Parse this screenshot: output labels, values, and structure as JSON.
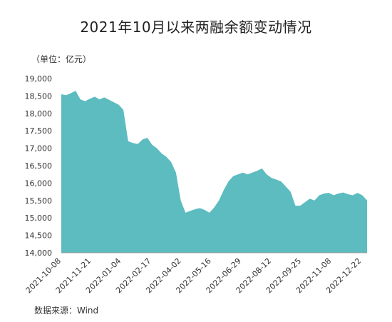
{
  "title": "2021年10月以来两融余额变动情况",
  "unit_label": "（单位：亿元）",
  "source": "数据来源：Wind",
  "watermark": "Wind",
  "chart_data": {
    "type": "area",
    "color": "#5cbcbf",
    "ylim": [
      14000,
      19000
    ],
    "yticks": [
      14000,
      14500,
      15000,
      15500,
      16000,
      16500,
      17000,
      17500,
      18000,
      18500,
      19000
    ],
    "ytick_labels": [
      "14,000",
      "14,500",
      "15,000",
      "15,500",
      "16,000",
      "16,500",
      "17,000",
      "17,500",
      "18,000",
      "18,500",
      "19,000"
    ],
    "xtick_labels": [
      "2021-10-08",
      "2021-11-21",
      "2022-01-04",
      "2022-02-17",
      "2022-04-02",
      "2022-05-16",
      "2022-06-29",
      "2022-08-12",
      "2022-09-25",
      "2022-11-08",
      "2022-12-22"
    ],
    "x": [
      "2021-10-08",
      "2021-10-15",
      "2021-10-22",
      "2021-10-29",
      "2021-11-05",
      "2021-11-12",
      "2021-11-19",
      "2021-11-26",
      "2021-12-03",
      "2021-12-10",
      "2021-12-17",
      "2021-12-24",
      "2021-12-31",
      "2022-01-07",
      "2022-01-14",
      "2022-01-21",
      "2022-01-28",
      "2022-02-04",
      "2022-02-11",
      "2022-02-18",
      "2022-02-25",
      "2022-03-04",
      "2022-03-11",
      "2022-03-18",
      "2022-03-25",
      "2022-04-01",
      "2022-04-08",
      "2022-04-15",
      "2022-04-22",
      "2022-04-29",
      "2022-05-06",
      "2022-05-13",
      "2022-05-20",
      "2022-05-27",
      "2022-06-03",
      "2022-06-10",
      "2022-06-17",
      "2022-06-24",
      "2022-07-01",
      "2022-07-08",
      "2022-07-15",
      "2022-07-22",
      "2022-07-29",
      "2022-08-05",
      "2022-08-12",
      "2022-08-19",
      "2022-08-26",
      "2022-09-02",
      "2022-09-09",
      "2022-09-16",
      "2022-09-23",
      "2022-09-30",
      "2022-10-07",
      "2022-10-14",
      "2022-10-21",
      "2022-10-28",
      "2022-11-04",
      "2022-11-11",
      "2022-11-18",
      "2022-11-25",
      "2022-12-02",
      "2022-12-09",
      "2022-12-16",
      "2022-12-23",
      "2022-12-30"
    ],
    "values": [
      18550,
      18520,
      18580,
      18650,
      18400,
      18350,
      18420,
      18480,
      18400,
      18460,
      18390,
      18320,
      18250,
      18100,
      17200,
      17150,
      17120,
      17250,
      17300,
      17100,
      17000,
      16850,
      16750,
      16600,
      16300,
      15500,
      15150,
      15200,
      15250,
      15280,
      15230,
      15150,
      15300,
      15500,
      15800,
      16050,
      16200,
      16250,
      16300,
      16250,
      16300,
      16350,
      16420,
      16250,
      16150,
      16100,
      16050,
      15900,
      15750,
      15350,
      15350,
      15450,
      15550,
      15500,
      15650,
      15700,
      15720,
      15650,
      15700,
      15730,
      15680,
      15650,
      15720,
      15650,
      15500
    ]
  }
}
